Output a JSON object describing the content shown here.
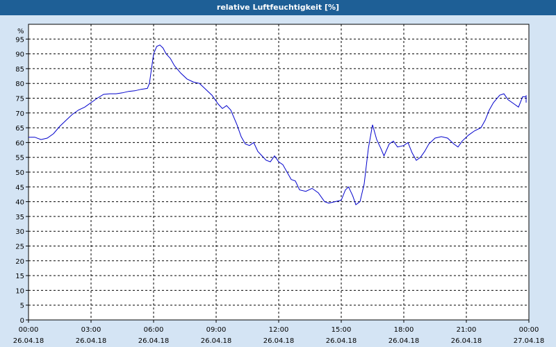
{
  "chart_data": {
    "type": "line",
    "title": "relative Luftfeuchtigkeit [%]",
    "ylabel": "%",
    "ylim": [
      0,
      100
    ],
    "yticks": [
      0,
      5,
      10,
      15,
      20,
      25,
      30,
      35,
      40,
      45,
      50,
      55,
      60,
      65,
      70,
      75,
      80,
      85,
      90,
      95
    ],
    "xlim": [
      0,
      24
    ],
    "xticks": [
      {
        "x": 0,
        "time": "00:00",
        "date": "26.04.18"
      },
      {
        "x": 3,
        "time": "03:00",
        "date": "26.04.18"
      },
      {
        "x": 6,
        "time": "06:00",
        "date": "26.04.18"
      },
      {
        "x": 9,
        "time": "09:00",
        "date": "26.04.18"
      },
      {
        "x": 12,
        "time": "12:00",
        "date": "26.04.18"
      },
      {
        "x": 15,
        "time": "15:00",
        "date": "26.04.18"
      },
      {
        "x": 18,
        "time": "18:00",
        "date": "26.04.18"
      },
      {
        "x": 21,
        "time": "21:00",
        "date": "26.04.18"
      },
      {
        "x": 24,
        "time": "00:00",
        "date": "27.04.18"
      }
    ],
    "grid": true,
    "line_color": "#0000cc",
    "series": [
      {
        "points": [
          [
            0.0,
            61.8
          ],
          [
            0.3,
            61.8
          ],
          [
            0.6,
            61.0
          ],
          [
            0.9,
            61.5
          ],
          [
            1.2,
            63.0
          ],
          [
            1.5,
            65.5
          ],
          [
            1.8,
            67.5
          ],
          [
            2.1,
            69.5
          ],
          [
            2.4,
            71.0
          ],
          [
            2.7,
            72.0
          ],
          [
            3.0,
            73.5
          ],
          [
            3.3,
            75.0
          ],
          [
            3.6,
            76.3
          ],
          [
            3.9,
            76.5
          ],
          [
            4.2,
            76.5
          ],
          [
            4.5,
            76.8
          ],
          [
            4.8,
            77.3
          ],
          [
            5.1,
            77.5
          ],
          [
            5.4,
            78.0
          ],
          [
            5.7,
            78.3
          ],
          [
            5.8,
            80.0
          ],
          [
            5.9,
            85.0
          ],
          [
            6.0,
            90.0
          ],
          [
            6.15,
            92.5
          ],
          [
            6.3,
            93.0
          ],
          [
            6.45,
            92.0
          ],
          [
            6.6,
            90.0
          ],
          [
            6.8,
            88.5
          ],
          [
            7.0,
            86.0
          ],
          [
            7.3,
            83.5
          ],
          [
            7.6,
            81.5
          ],
          [
            7.9,
            80.5
          ],
          [
            8.2,
            80.0
          ],
          [
            8.5,
            78.0
          ],
          [
            8.8,
            76.0
          ],
          [
            9.1,
            73.0
          ],
          [
            9.3,
            71.5
          ],
          [
            9.5,
            72.5
          ],
          [
            9.7,
            71.0
          ],
          [
            10.0,
            66.0
          ],
          [
            10.2,
            62.0
          ],
          [
            10.4,
            59.5
          ],
          [
            10.6,
            59.0
          ],
          [
            10.8,
            60.0
          ],
          [
            11.0,
            57.0
          ],
          [
            11.2,
            55.5
          ],
          [
            11.4,
            54.0
          ],
          [
            11.6,
            53.5
          ],
          [
            11.8,
            55.5
          ],
          [
            12.0,
            53.5
          ],
          [
            12.2,
            52.5
          ],
          [
            12.4,
            50.0
          ],
          [
            12.6,
            47.5
          ],
          [
            12.8,
            47.0
          ],
          [
            13.0,
            44.0
          ],
          [
            13.3,
            43.5
          ],
          [
            13.6,
            44.5
          ],
          [
            13.9,
            43.0
          ],
          [
            14.2,
            40.0
          ],
          [
            14.4,
            39.5
          ],
          [
            14.7,
            40.0
          ],
          [
            15.0,
            40.5
          ],
          [
            15.2,
            44.0
          ],
          [
            15.35,
            45.0
          ],
          [
            15.55,
            42.0
          ],
          [
            15.7,
            39.0
          ],
          [
            15.9,
            40.0
          ],
          [
            16.1,
            46.0
          ],
          [
            16.3,
            58.0
          ],
          [
            16.5,
            66.0
          ],
          [
            16.7,
            61.0
          ],
          [
            16.9,
            58.0
          ],
          [
            17.05,
            55.5
          ],
          [
            17.3,
            59.5
          ],
          [
            17.5,
            60.5
          ],
          [
            17.7,
            58.5
          ],
          [
            18.0,
            59.0
          ],
          [
            18.2,
            60.0
          ],
          [
            18.4,
            56.5
          ],
          [
            18.6,
            54.0
          ],
          [
            18.8,
            55.0
          ],
          [
            19.0,
            57.0
          ],
          [
            19.2,
            59.5
          ],
          [
            19.5,
            61.5
          ],
          [
            19.8,
            62.0
          ],
          [
            20.1,
            61.5
          ],
          [
            20.4,
            59.5
          ],
          [
            20.6,
            58.5
          ],
          [
            20.8,
            60.5
          ],
          [
            21.1,
            62.5
          ],
          [
            21.4,
            64.0
          ],
          [
            21.7,
            65.0
          ],
          [
            21.9,
            67.5
          ],
          [
            22.1,
            71.0
          ],
          [
            22.3,
            73.5
          ],
          [
            22.6,
            76.0
          ],
          [
            22.8,
            76.5
          ],
          [
            23.0,
            74.5
          ],
          [
            23.3,
            73.0
          ],
          [
            23.5,
            72.0
          ],
          [
            23.7,
            75.5
          ],
          [
            23.9,
            75.5
          ],
          [
            24.1,
            73.5
          ],
          [
            24.3,
            74.0
          ],
          [
            24.5,
            76.0
          ],
          [
            24.7,
            76.0
          ]
        ]
      }
    ]
  }
}
